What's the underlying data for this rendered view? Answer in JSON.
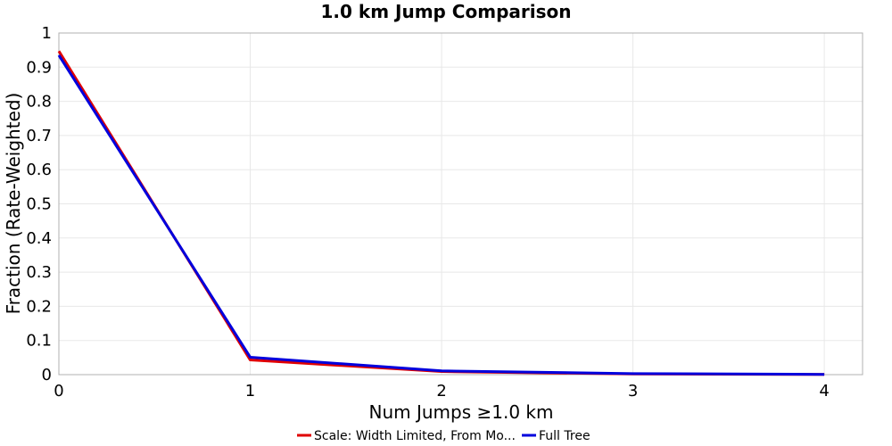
{
  "chart_data": {
    "type": "line",
    "title": "1.0 km Jump Comparison",
    "xlabel": "Num Jumps ≥1.0 km",
    "ylabel": "Fraction (Rate-Weighted)",
    "x": [
      0,
      1,
      2,
      3,
      4
    ],
    "xlim": [
      0,
      4.2
    ],
    "ylim": [
      0,
      1
    ],
    "x_ticks": [
      "0",
      "1",
      "2",
      "3",
      "4"
    ],
    "y_ticks": [
      "0",
      "0.1",
      "0.2",
      "0.3",
      "0.4",
      "0.5",
      "0.6",
      "0.7",
      "0.8",
      "0.9",
      "1"
    ],
    "grid": true,
    "legend_position": "bottom",
    "series": [
      {
        "name": "Scale: Width Limited, From Mo...",
        "color": "#e00000",
        "values": [
          0.947,
          0.043,
          0.009,
          0.002,
          0.0005
        ]
      },
      {
        "name": "Full Tree",
        "color": "#0000dd",
        "values": [
          0.935,
          0.051,
          0.011,
          0.003,
          0.0008
        ]
      }
    ]
  }
}
